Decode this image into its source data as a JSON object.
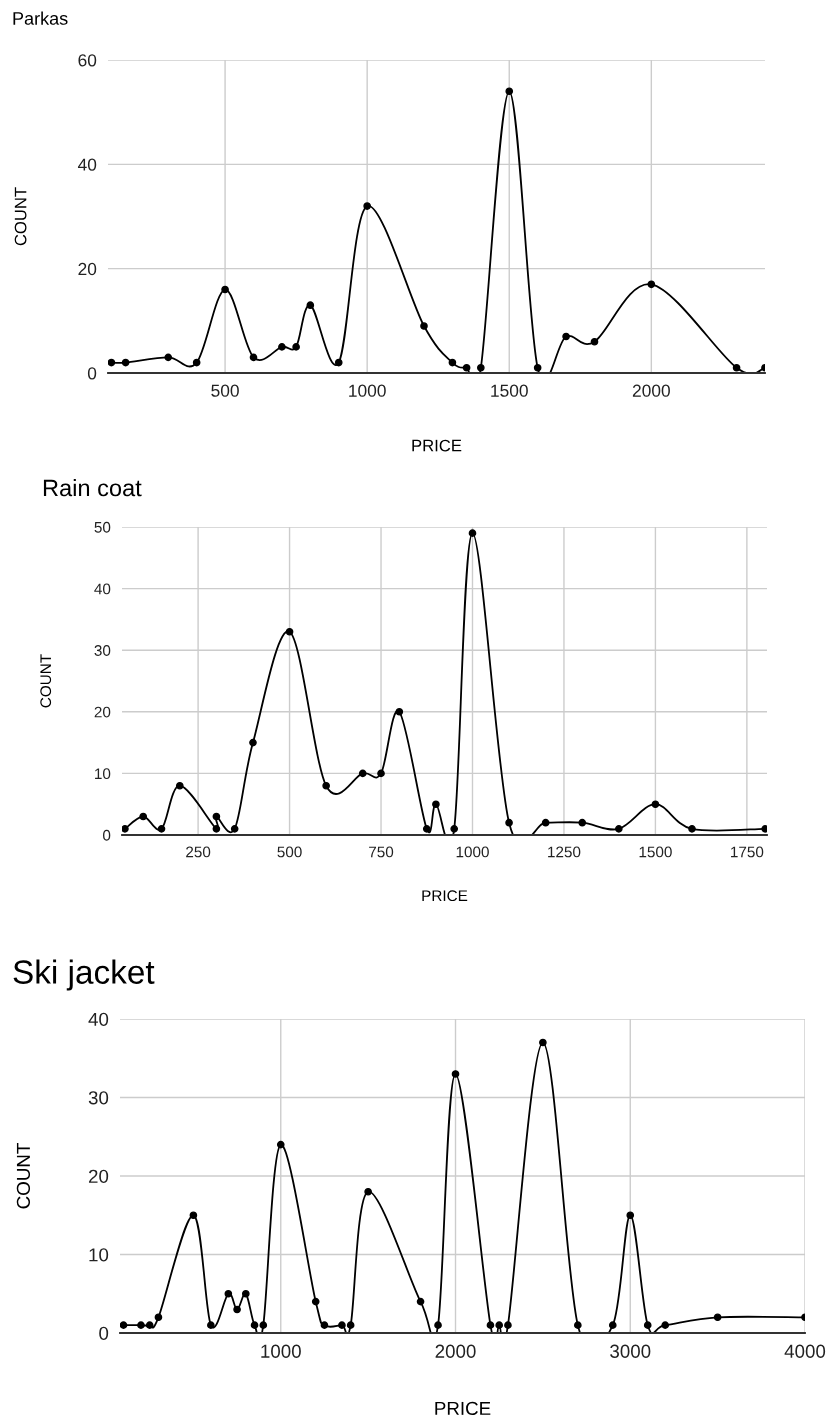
{
  "chart_data": [
    {
      "type": "line",
      "title": "Parkas",
      "xlabel": "PRICE",
      "ylabel": "COUNT",
      "marker": "circle",
      "grid": true,
      "xlim": [
        88,
        2400
      ],
      "xticks": [
        500,
        1000,
        1500,
        2000
      ],
      "ylim": [
        0,
        60
      ],
      "yticks": [
        0,
        20,
        40,
        60
      ],
      "x": [
        100,
        150,
        300,
        400,
        500,
        600,
        700,
        750,
        800,
        900,
        1000,
        1200,
        1300,
        1350,
        1400,
        1500,
        1600,
        1700,
        1800,
        2000,
        2300,
        2400
      ],
      "series": [
        {
          "color": "#000000",
          "values": [
            2,
            2,
            3,
            2,
            16,
            3,
            5,
            5,
            13,
            2,
            32,
            9,
            2,
            1,
            1,
            54,
            1,
            7,
            6,
            17,
            1,
            1
          ]
        }
      ]
    },
    {
      "type": "line",
      "title": "Rain coat",
      "xlabel": "PRICE",
      "ylabel": "COUNT",
      "marker": "circle",
      "grid": true,
      "xlim": [
        42,
        1805
      ],
      "xticks": [
        250,
        500,
        750,
        1000,
        1250,
        1500,
        1750
      ],
      "ylim": [
        0,
        50
      ],
      "yticks": [
        0,
        10,
        20,
        30,
        40,
        50
      ],
      "x": [
        50,
        100,
        150,
        200,
        300,
        300,
        350,
        400,
        500,
        600,
        700,
        750,
        800,
        875,
        900,
        950,
        1000,
        1100,
        1200,
        1300,
        1400,
        1500,
        1600,
        1800
      ],
      "series": [
        {
          "color": "#000000",
          "values": [
            1,
            3,
            1,
            8,
            1,
            3,
            1,
            15,
            33,
            8,
            10,
            10,
            20,
            1,
            5,
            1,
            49,
            2,
            2,
            2,
            1,
            5,
            1,
            1
          ]
        }
      ]
    },
    {
      "type": "line",
      "title": "Ski jacket",
      "xlabel": "PRICE",
      "ylabel": "COUNT",
      "marker": "circle",
      "grid": true,
      "xlim": [
        80,
        4000
      ],
      "xticks": [
        1000,
        2000,
        3000,
        4000
      ],
      "ylim": [
        0,
        40
      ],
      "yticks": [
        0,
        10,
        20,
        30,
        40
      ],
      "x": [
        100,
        200,
        250,
        300,
        500,
        600,
        700,
        750,
        800,
        850,
        900,
        1000,
        1200,
        1250,
        1350,
        1400,
        1500,
        1800,
        1900,
        2000,
        2200,
        2250,
        2300,
        2500,
        2700,
        2900,
        3000,
        3100,
        3200,
        3500,
        4000
      ],
      "series": [
        {
          "color": "#000000",
          "values": [
            1,
            1,
            1,
            2,
            15,
            1,
            5,
            3,
            5,
            1,
            1,
            24,
            4,
            1,
            1,
            1,
            18,
            4,
            1,
            33,
            1,
            1,
            1,
            37,
            1,
            1,
            15,
            1,
            1,
            2,
            2
          ]
        }
      ]
    }
  ]
}
